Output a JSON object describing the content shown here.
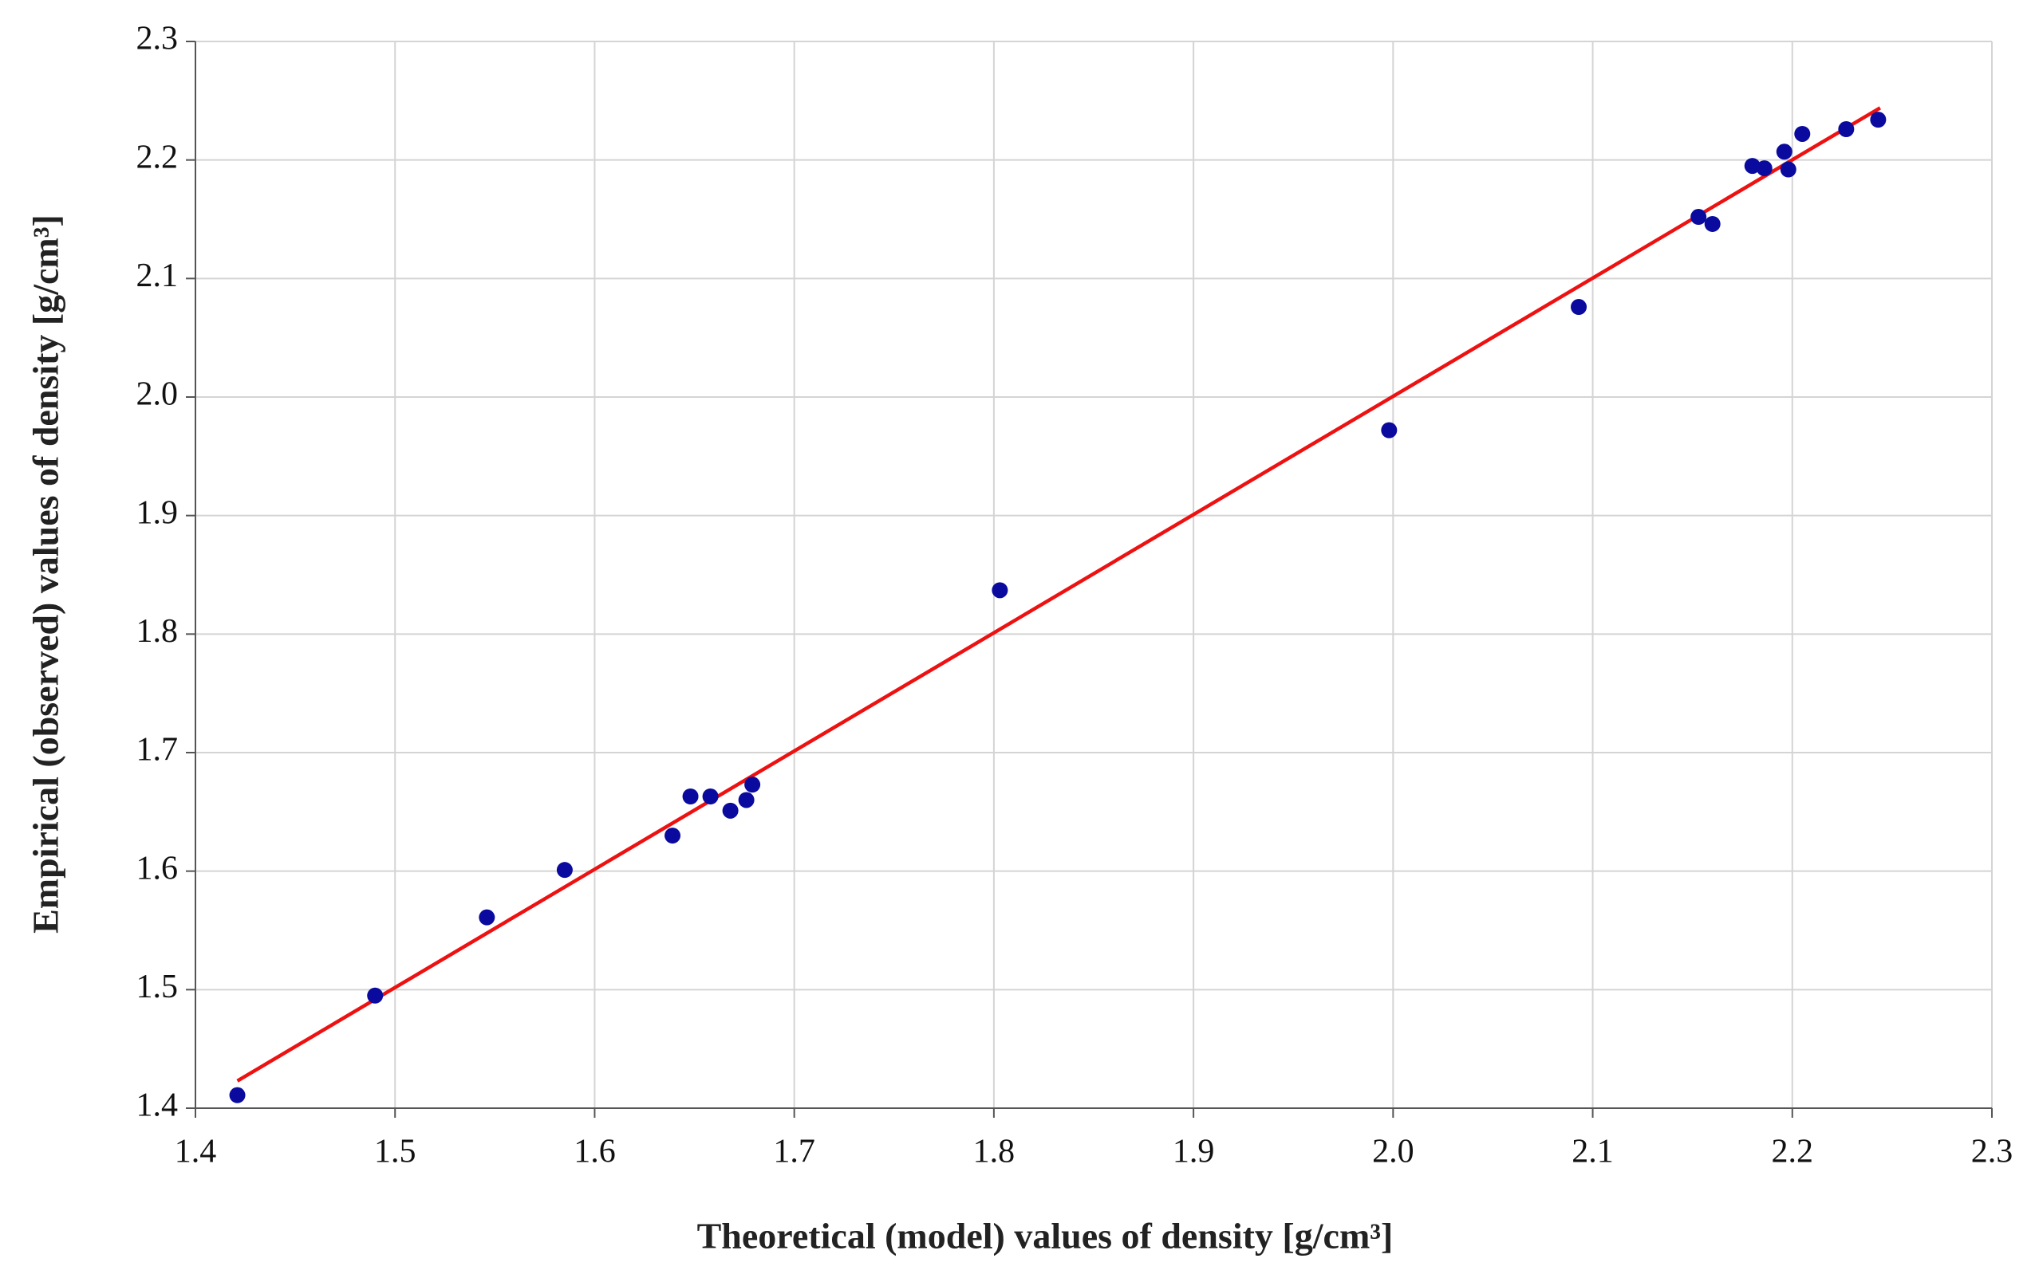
{
  "chart_data": {
    "type": "scatter",
    "xlabel": "Theoretical (model) values of density  [g/cm³]",
    "ylabel": "Empirical (observed) values of density  [g/cm³]",
    "x": [
      1.421,
      1.49,
      1.546,
      1.585,
      1.639,
      1.648,
      1.658,
      1.668,
      1.676,
      1.679,
      1.803,
      1.998,
      2.093,
      2.153,
      2.16,
      2.18,
      2.186,
      2.196,
      2.198,
      2.205,
      2.227,
      2.243
    ],
    "values": [
      1.411,
      1.495,
      1.561,
      1.601,
      1.63,
      1.663,
      1.663,
      1.651,
      1.66,
      1.673,
      1.837,
      1.972,
      2.076,
      2.152,
      2.146,
      2.195,
      2.193,
      2.207,
      2.192,
      2.222,
      2.226,
      2.234
    ],
    "color": "#0a0a9e",
    "trend": {
      "x": [
        1.421,
        2.244
      ],
      "values": [
        1.423,
        2.244
      ],
      "color": "#ee1111"
    },
    "xlim": [
      1.4,
      2.3
    ],
    "ylim": [
      1.4,
      2.3
    ],
    "xticks": [
      1.4,
      1.5,
      1.6,
      1.7,
      1.8,
      1.9,
      {
        "value": 2,
        "label": "2.0"
      },
      2.1,
      2.2,
      2.3
    ],
    "yticks": [
      1.4,
      1.5,
      1.6,
      1.7,
      1.8,
      1.9,
      {
        "value": 2,
        "label": "2.0"
      },
      2.1,
      2.2,
      2.3
    ],
    "grid": true
  }
}
